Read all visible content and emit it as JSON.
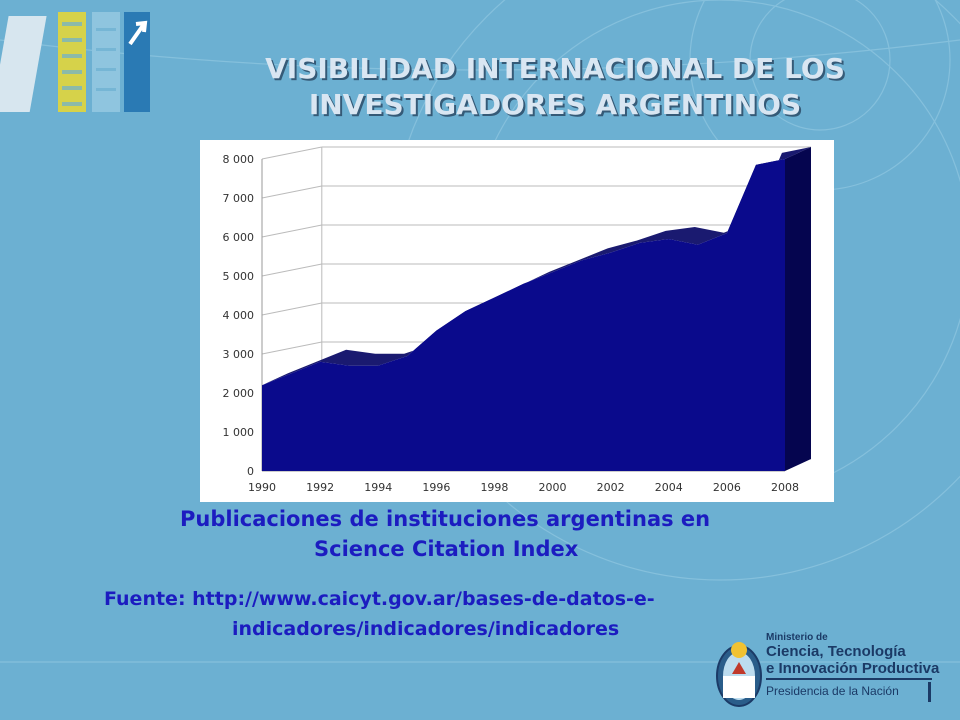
{
  "title": {
    "line1": "VISIBILIDAD INTERNACIONAL DE LOS",
    "line2": "INVESTIGADORES ARGENTINOS"
  },
  "caption": {
    "line1": "Publicaciones de instituciones argentinas en",
    "line2": "Science Citation Index"
  },
  "source": {
    "line1": "Fuente: http://www.caicyt.gov.ar/bases-de-datos-e-",
    "line2": "indicadores/indicadores/indicadores"
  },
  "ministry": {
    "line1": "Ministerio de",
    "line2": "Ciencia, Tecnología",
    "line3": "e Innovación Productiva",
    "line4": "Presidencia de la Nación"
  },
  "colors": {
    "background": "#6cb0d2",
    "area_fill": "#0a0a8c",
    "area_top": "#1a1a70",
    "text_blue": "#1c1cc0"
  },
  "chart_data": {
    "type": "area",
    "x": [
      1990,
      1991,
      1992,
      1993,
      1994,
      1995,
      1996,
      1997,
      1998,
      1999,
      2000,
      2001,
      2002,
      2003,
      2004,
      2005,
      2006,
      2007,
      2008
    ],
    "values": [
      2200,
      2500,
      2800,
      2700,
      2700,
      2950,
      3600,
      4100,
      4450,
      4800,
      5100,
      5400,
      5600,
      5850,
      5950,
      5800,
      6100,
      7850,
      8000
    ],
    "x_tick_labels": [
      "1990",
      "1992",
      "1994",
      "1996",
      "1998",
      "2000",
      "2002",
      "2004",
      "2006",
      "2008"
    ],
    "y_tick_labels": [
      "0",
      "1 000",
      "2 000",
      "3 000",
      "4 000",
      "5 000",
      "6 000",
      "7 000",
      "8 000"
    ],
    "y_ticks": [
      0,
      1000,
      2000,
      3000,
      4000,
      5000,
      6000,
      7000,
      8000
    ],
    "ylim": [
      0,
      8000
    ],
    "grid": true,
    "style": "3d"
  }
}
